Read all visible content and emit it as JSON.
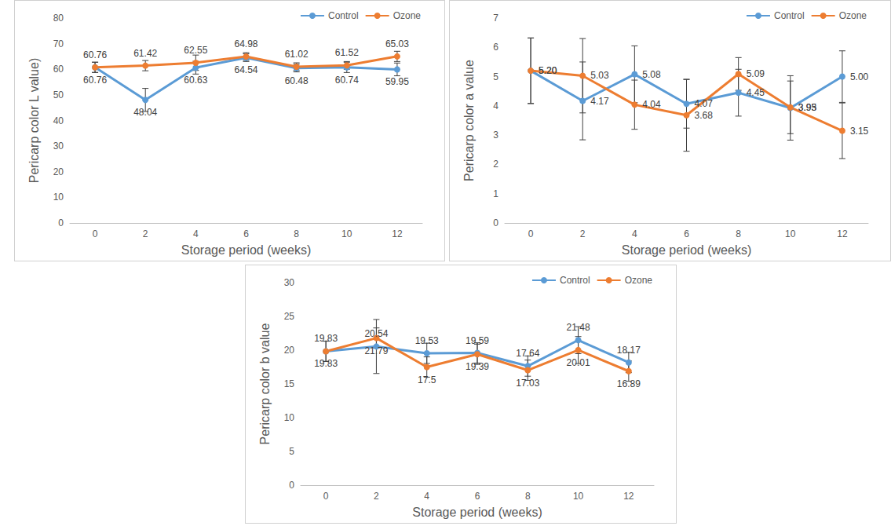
{
  "chart_data": [
    {
      "type": "line",
      "x_label": "Storage period (weeks)",
      "y_label": "Pericarp color L value)",
      "categories": [
        "0",
        "2",
        "4",
        "6",
        "8",
        "10",
        "12"
      ],
      "series": [
        {
          "name": "Control",
          "color": "#5B9BD5",
          "marker": "circle",
          "values": [
            60.76,
            48.04,
            60.63,
            64.54,
            60.48,
            60.74,
            59.95
          ],
          "errors": [
            2,
            4.5,
            2.5,
            1.5,
            1.5,
            2,
            2.5
          ]
        },
        {
          "name": "Ozone",
          "color": "#ED7D31",
          "marker": "circle",
          "values": [
            60.76,
            61.42,
            62.55,
            64.98,
            61.02,
            61.52,
            65.03
          ],
          "errors": [
            2,
            2,
            3,
            1.5,
            1.5,
            1.5,
            2
          ]
        }
      ],
      "ylim": [
        0,
        80
      ],
      "yticks": [
        0,
        10,
        20,
        30,
        40,
        50,
        60,
        70,
        80
      ],
      "grid": false,
      "legend": "upper right",
      "data_labels": true
    },
    {
      "type": "line",
      "x_label": "Storage period (weeks)",
      "y_label": "Pericarp color a value",
      "categories": [
        "0",
        "2",
        "4",
        "6",
        "8",
        "10",
        "12"
      ],
      "series": [
        {
          "name": "Control",
          "color": "#5B9BD5",
          "marker": "circle",
          "values": [
            5.2,
            4.17,
            5.08,
            4.07,
            4.45,
            3.93,
            5.0
          ],
          "value_labels": [
            "5.20",
            "4.17",
            "5.08",
            "4.07",
            "4.45",
            "3.93",
            "5.00"
          ],
          "errors": [
            1.12,
            1.33,
            0.97,
            0.83,
            0.8,
            1.1,
            0.88
          ]
        },
        {
          "name": "Ozone",
          "color": "#ED7D31",
          "marker": "circle",
          "values": [
            5.2,
            5.03,
            4.04,
            3.68,
            5.09,
            3.95,
            3.15
          ],
          "value_labels": [
            "5.20",
            "5.03",
            "4.04",
            "3.68",
            "5.09",
            "3.95",
            "3.15"
          ],
          "errors": [
            1.12,
            1.27,
            0.84,
            1.23,
            0.56,
            0.9,
            0.95
          ]
        }
      ],
      "ylim": [
        0,
        7
      ],
      "yticks": [
        0,
        1,
        2,
        3,
        4,
        5,
        6,
        7
      ],
      "grid": false,
      "legend": "upper right",
      "data_labels": true
    },
    {
      "type": "line",
      "x_label": "Storage period (weeks)",
      "y_label": "Pericarp color b value",
      "categories": [
        "0",
        "2",
        "4",
        "6",
        "8",
        "10",
        "12"
      ],
      "series": [
        {
          "name": "Control",
          "color": "#5B9BD5",
          "marker": "circle",
          "values": [
            19.83,
            20.54,
            19.53,
            19.59,
            17.64,
            21.48,
            18.17
          ],
          "errors": [
            1.5,
            4,
            1.5,
            1.5,
            1.5,
            2,
            1.5
          ]
        },
        {
          "name": "Ozone",
          "color": "#ED7D31",
          "marker": "circle",
          "values": [
            19.83,
            21.79,
            17.5,
            19.39,
            17.03,
            20.01,
            16.89
          ],
          "errors": [
            1.5,
            1.5,
            1.5,
            1.5,
            1.5,
            2,
            1.5
          ]
        }
      ],
      "ylim": [
        0,
        30
      ],
      "yticks": [
        0,
        5,
        10,
        15,
        20,
        25,
        30
      ],
      "grid": false,
      "legend": "upper right",
      "data_labels": true
    }
  ]
}
